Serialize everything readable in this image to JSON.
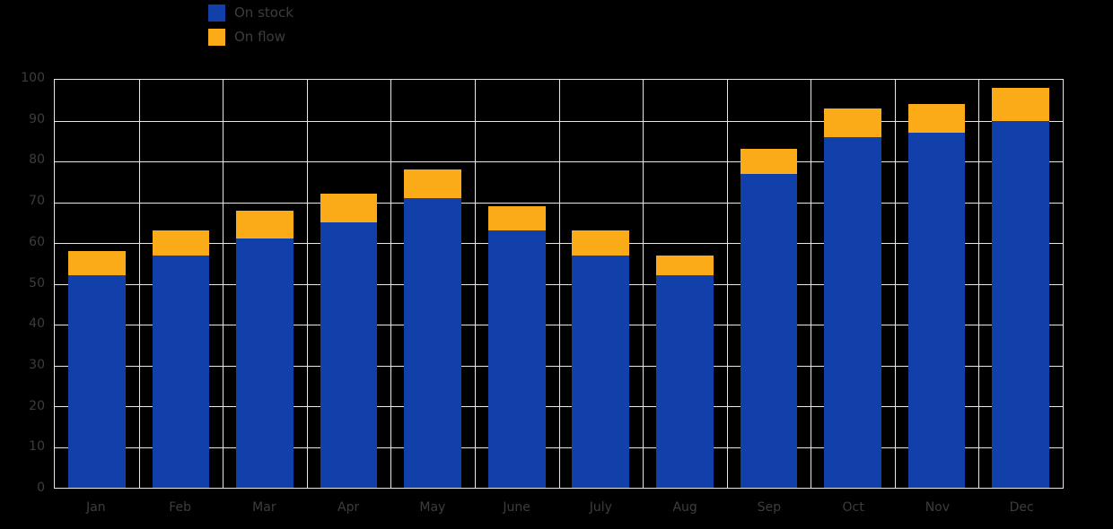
{
  "chart_data": {
    "type": "bar",
    "stacked": true,
    "title": "",
    "xlabel": "",
    "ylabel": "",
    "categories": [
      "Jan",
      "Feb",
      "Mar",
      "Apr",
      "May",
      "June",
      "July",
      "Aug",
      "Sep",
      "Oct",
      "Nov",
      "Dec"
    ],
    "series": [
      {
        "name": "On stock",
        "color": "#1240ab",
        "values": [
          52,
          57,
          61,
          65,
          71,
          63,
          57,
          52,
          77,
          86,
          87,
          90
        ]
      },
      {
        "name": "On flow",
        "color": "#fbab18",
        "values": [
          6,
          6,
          7,
          7,
          7,
          6,
          6,
          5,
          6,
          7,
          7,
          8
        ]
      }
    ],
    "ylim": [
      0,
      100
    ],
    "ytick_interval": 10,
    "ytick_labels": [
      "0",
      "10",
      "20",
      "30",
      "40",
      "50",
      "60",
      "70",
      "80",
      "90",
      "100"
    ],
    "grid": true,
    "legend_position": "top-left",
    "background_color": "#000000",
    "text_color": "#3d3d3d",
    "grid_color": "#e6e6e6"
  }
}
